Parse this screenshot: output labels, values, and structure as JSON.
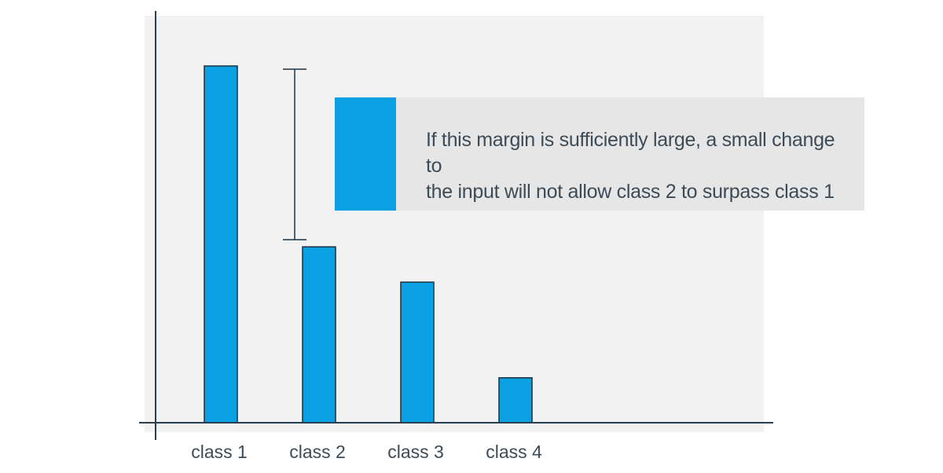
{
  "chart_data": {
    "type": "bar",
    "title": "",
    "xlabel": "",
    "ylabel": "",
    "categories": [
      "class 1",
      "class 2",
      "class 3",
      "class 4"
    ],
    "values": [
      100,
      49.3,
      39.4,
      12.6
    ],
    "ylim": [
      0,
      110
    ],
    "grid": false,
    "legend": "none",
    "colors": {
      "bar": "#0aa0e2",
      "bar_edge": "#1f3a4a",
      "axis": "#2a3f50",
      "plot_background": "#f2f2f2",
      "text": "#3d4b57",
      "annotation_background": "#e6e6e6"
    },
    "margin_bracket": {
      "from_category": "class 2",
      "low": 51.3,
      "high": 99.1
    },
    "annotation": {
      "line1": "If this margin is sufficiently large, a small change to",
      "line2": "the input will not allow class 2 to surpass class 1"
    }
  }
}
